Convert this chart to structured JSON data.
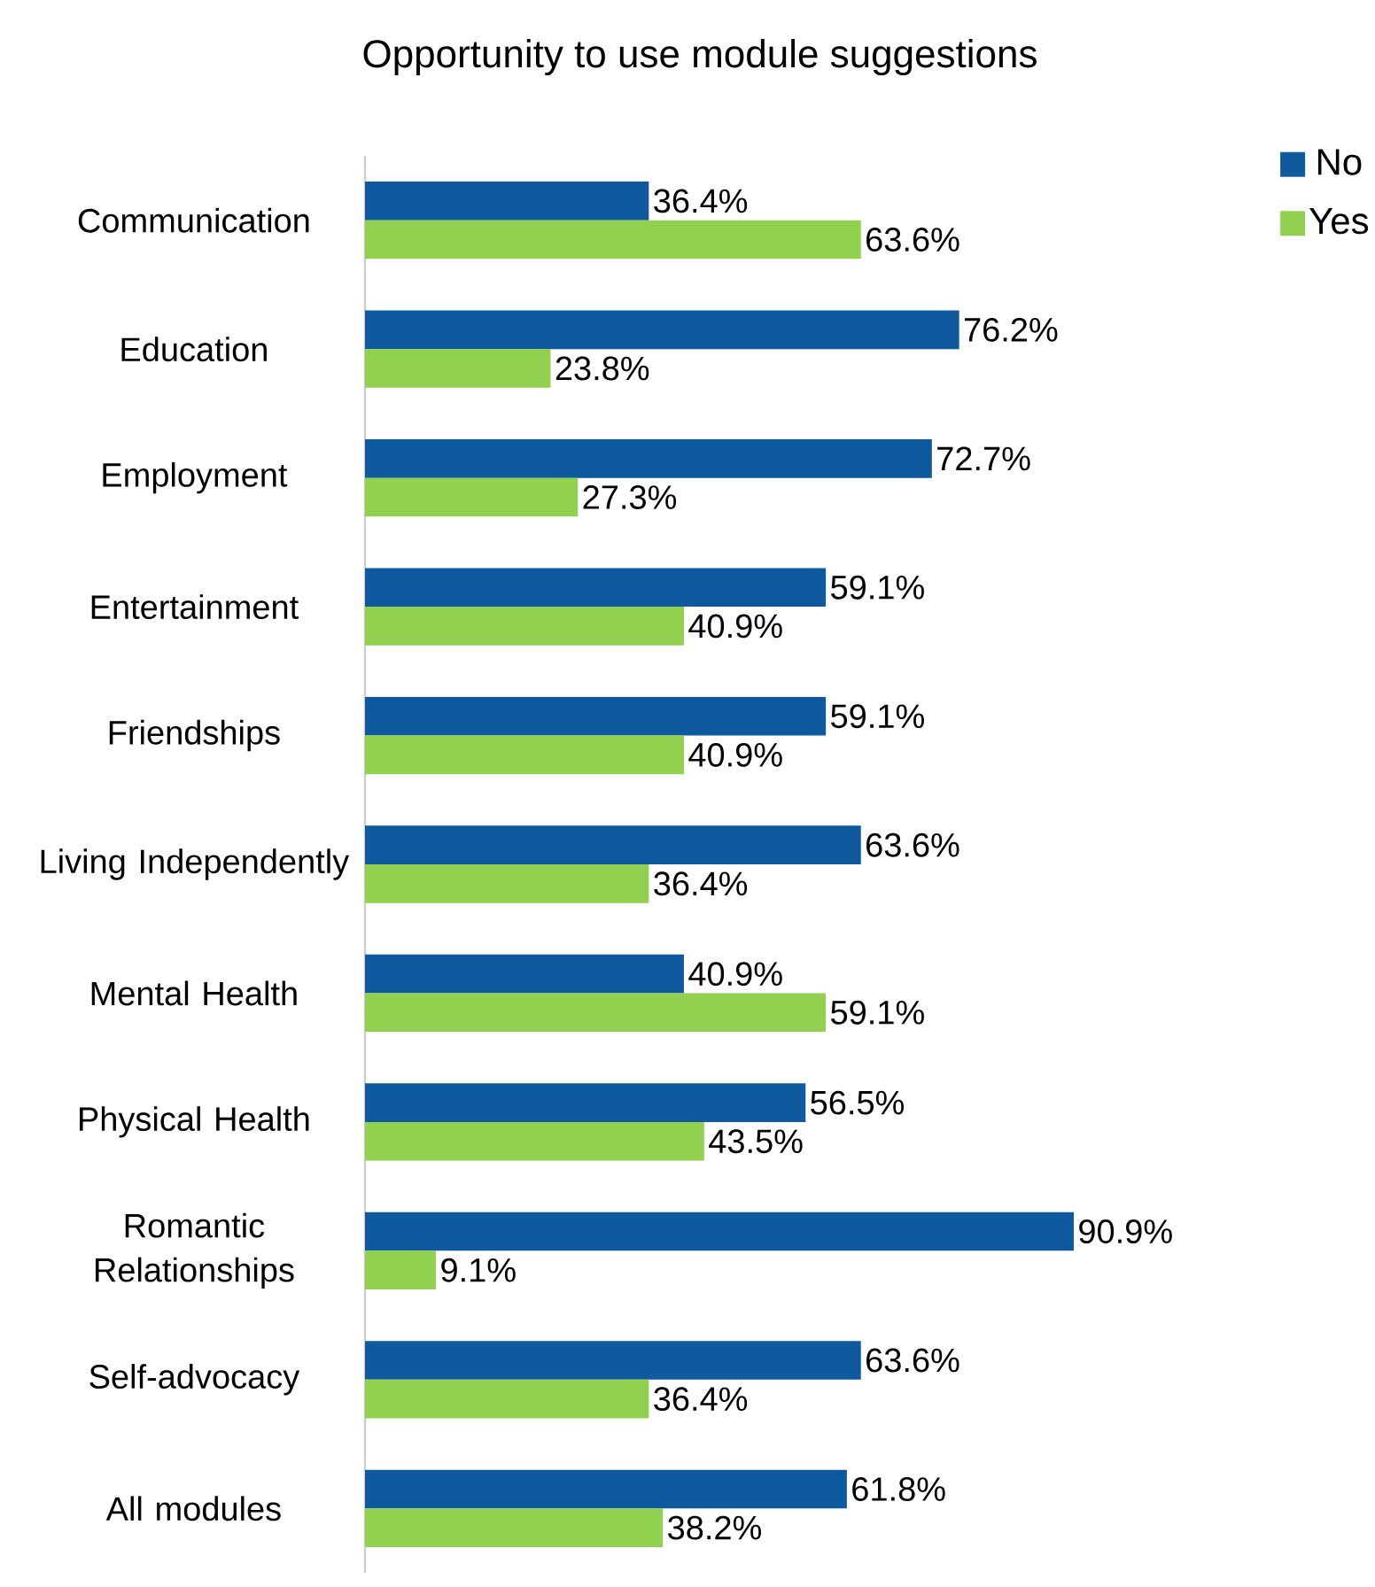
{
  "chart_data": {
    "type": "bar",
    "orientation": "horizontal",
    "title": "Opportunity to use module suggestions",
    "categories": [
      "Communication",
      "Education",
      "Employment",
      "Entertainment",
      "Friendships",
      "Living Independently",
      "Mental Health",
      "Physical Health",
      "Romantic Relationships",
      "Self-advocacy",
      "All modules"
    ],
    "series": [
      {
        "name": "No",
        "color": "#0f5a9e",
        "values": [
          36.4,
          76.2,
          72.7,
          59.1,
          59.1,
          63.6,
          40.9,
          56.5,
          90.9,
          63.6,
          61.8
        ],
        "value_labels": [
          "36.4%",
          "76.2%",
          "72.7%",
          "59.1%",
          "59.1%",
          "63.6%",
          "40.9%",
          "56.5%",
          "90.9%",
          "63.6%",
          "61.8%"
        ]
      },
      {
        "name": "Yes",
        "color": "#92d050",
        "values": [
          63.6,
          23.8,
          27.3,
          40.9,
          40.9,
          36.4,
          59.1,
          43.5,
          9.1,
          36.4,
          38.2
        ],
        "value_labels": [
          "63.6%",
          "23.8%",
          "27.3%",
          "40.9%",
          "40.9%",
          "36.4%",
          "59.1%",
          "43.5%",
          "9.1%",
          "36.4%",
          "38.2%"
        ]
      }
    ],
    "legend": "top right"
  }
}
